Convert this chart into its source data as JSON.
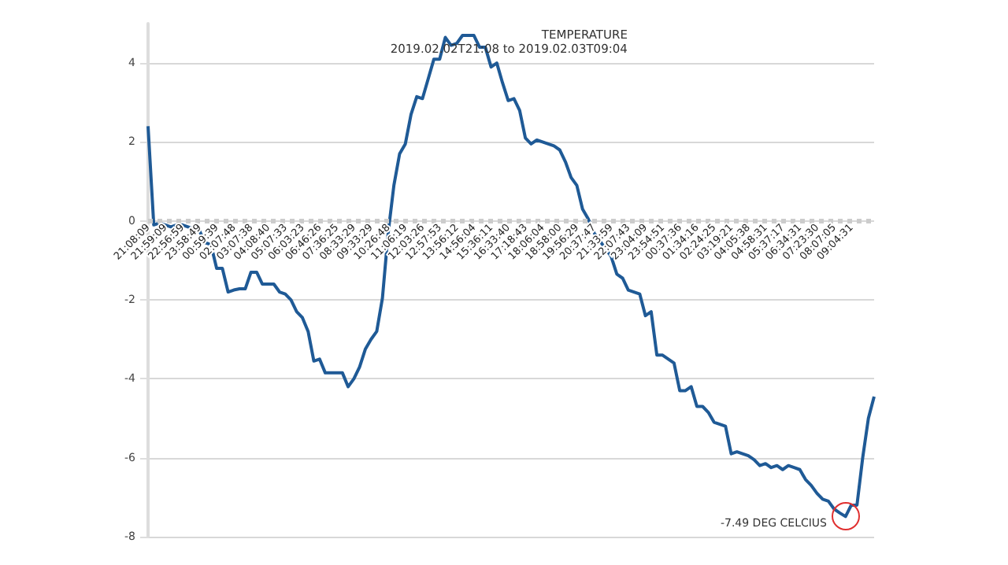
{
  "chart_data": {
    "type": "line",
    "title": "TEMPERATURE",
    "subtitle": "2019.02.02T21:08 to 2019.02.03T09:04",
    "categories": [
      "21:08:09",
      null,
      null,
      "21:59:09",
      null,
      null,
      "22:56:59",
      null,
      null,
      "23:58:49",
      null,
      null,
      "00:59:39",
      null,
      null,
      "02:07:48",
      null,
      null,
      "03:07:38",
      null,
      null,
      "04:08:40",
      null,
      null,
      "05:07:33",
      null,
      null,
      "06:03:23",
      null,
      null,
      "06:46:26",
      null,
      null,
      "07:36:25",
      null,
      null,
      "08:33:29",
      null,
      null,
      "09:33:29",
      null,
      null,
      "10:26:48",
      null,
      null,
      "11:06:19",
      null,
      null,
      "12:03:26",
      null,
      null,
      "12:57:53",
      null,
      null,
      "13:56:12",
      null,
      null,
      "14:56:04",
      null,
      null,
      "15:36:11",
      null,
      null,
      "16:33:40",
      null,
      null,
      "17:18:43",
      null,
      null,
      "18:06:04",
      null,
      null,
      "18:58:00",
      null,
      null,
      "19:56:29",
      null,
      null,
      "20:37:47",
      null,
      null,
      "21:33:59",
      null,
      null,
      "22:07:43",
      null,
      null,
      "23:04:09",
      null,
      null,
      "23:54:51",
      null,
      null,
      "00:37:36",
      null,
      null,
      "01:34:16",
      null,
      null,
      "02:24:25",
      null,
      null,
      "03:19:21",
      null,
      null,
      "04:05:38",
      null,
      null,
      "04:58:31",
      null,
      null,
      "05:37:17",
      null,
      null,
      "06:34:31",
      null,
      null,
      "07:23:30",
      null,
      null,
      "08:07:05",
      null,
      null,
      "09:04:31",
      null,
      null,
      null,
      null
    ],
    "series": [
      {
        "color": "#1f5a96",
        "values": [
          2.4,
          -0.1,
          -0.05,
          -0.1,
          -0.15,
          -0.1,
          -0.1,
          -0.15,
          -0.2,
          -0.25,
          -0.55,
          -0.6,
          -1.2,
          -1.2,
          -1.8,
          -1.75,
          -1.72,
          -1.72,
          -1.3,
          -1.3,
          -1.6,
          -1.6,
          -1.6,
          -1.8,
          -1.85,
          -2.0,
          -2.3,
          -2.45,
          -2.8,
          -3.55,
          -3.5,
          -3.85,
          -3.85,
          -3.85,
          -3.85,
          -4.2,
          -4.0,
          -3.7,
          -3.25,
          -3.0,
          -2.8,
          -1.95,
          -0.3,
          0.9,
          1.7,
          1.95,
          2.7,
          3.15,
          3.1,
          3.6,
          4.1,
          4.1,
          4.65,
          4.45,
          4.5,
          4.7,
          4.7,
          4.7,
          4.4,
          4.4,
          3.9,
          4.0,
          3.5,
          3.05,
          3.1,
          2.8,
          2.1,
          1.95,
          2.05,
          2.0,
          1.95,
          1.9,
          1.8,
          1.5,
          1.1,
          0.9,
          0.3,
          0.05,
          -0.3,
          -0.5,
          -0.7,
          -0.9,
          -1.35,
          -1.45,
          -1.75,
          -1.8,
          -1.85,
          -2.4,
          -2.3,
          -3.4,
          -3.4,
          -3.5,
          -3.6,
          -4.3,
          -4.3,
          -4.2,
          -4.7,
          -4.7,
          -4.85,
          -5.1,
          -5.15,
          -5.2,
          -5.9,
          -5.85,
          -5.9,
          -5.95,
          -6.05,
          -6.2,
          -6.15,
          -6.25,
          -6.2,
          -6.3,
          -6.2,
          -6.25,
          -6.3,
          -6.55,
          -6.7,
          -6.9,
          -7.05,
          -7.1,
          -7.3,
          -7.4,
          -7.49,
          -7.2,
          -7.2,
          -6.0,
          -5.0,
          -4.45
        ]
      }
    ],
    "ylim": [
      -8,
      5
    ],
    "yticks": [
      -8,
      -6,
      -4,
      -2,
      0,
      2,
      4
    ],
    "grid": "y",
    "marker": "none",
    "line_style": "solid",
    "ref_lines": [
      {
        "axis": "y",
        "value": 0,
        "color": "#cccccc",
        "line_style": "dotted"
      }
    ],
    "annotations": [
      "-7.49 DEG CELCIUS"
    ]
  }
}
